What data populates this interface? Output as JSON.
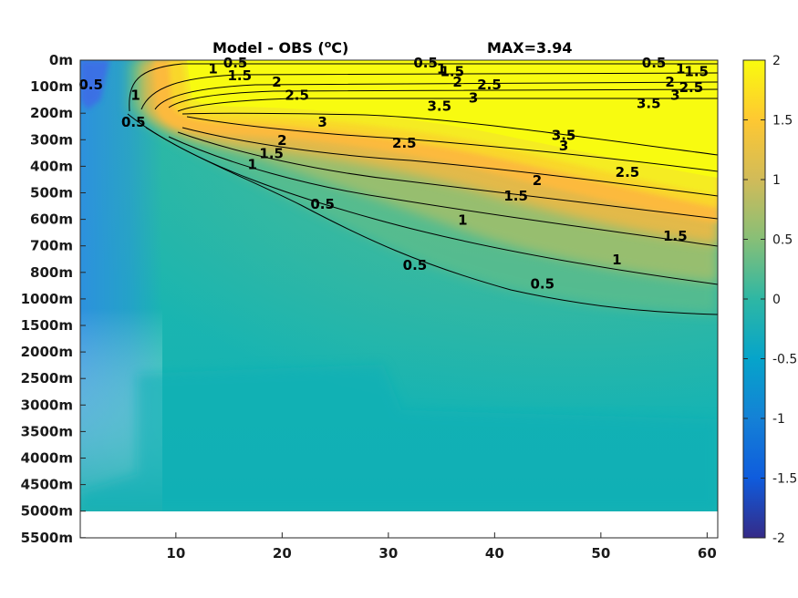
{
  "chart_data": {
    "type": "heatmap",
    "title": "Model - OBS (°C)",
    "title_text": "Model - OBS (",
    "title_sup": "o",
    "title_unit": "C)",
    "max_label": "MAX=3.94",
    "xlim": [
      1,
      61
    ],
    "x_ticks": [
      10,
      20,
      30,
      40,
      50,
      60
    ],
    "y_tick_labels": [
      "0m",
      "100m",
      "200m",
      "300m",
      "400m",
      "500m",
      "600m",
      "700m",
      "800m",
      "1000m",
      "1500m",
      "2000m",
      "2500m",
      "3000m",
      "3500m",
      "4000m",
      "4500m",
      "5000m",
      "5500m"
    ],
    "data_bottom_label": "5000m",
    "colorbar": {
      "min": -2,
      "max": 2,
      "tick_labels": [
        "2",
        "1.5",
        "1",
        "0.5",
        "0",
        "-0.5",
        "-1",
        "-1.5",
        "-2"
      ],
      "colormap": "parula"
    },
    "contour_levels": [
      0.5,
      1,
      1.5,
      2,
      2.5,
      3,
      3.5
    ],
    "contour_labels": [
      {
        "text": "0.5",
        "x": 15.6,
        "depth": "0m"
      },
      {
        "text": "1",
        "x": 13.5,
        "depth": "50m"
      },
      {
        "text": "1.5",
        "x": 16.0,
        "depth": "75m"
      },
      {
        "text": "2",
        "x": 19.5,
        "depth": "100m"
      },
      {
        "text": "2.5",
        "x": 21.4,
        "depth": "150m"
      },
      {
        "text": "3",
        "x": 23.8,
        "depth": "250m"
      },
      {
        "text": "3.5",
        "x": 34.8,
        "depth": "190m"
      },
      {
        "text": "2.5",
        "x": 31.5,
        "depth": "330m"
      },
      {
        "text": "2",
        "x": 20.0,
        "depth": "320m"
      },
      {
        "text": "1.5",
        "x": 19.0,
        "depth": "370m"
      },
      {
        "text": "1",
        "x": 17.2,
        "depth": "410m"
      },
      {
        "text": "0.5",
        "x": 6.0,
        "depth": "250m"
      },
      {
        "text": "1",
        "x": 6.2,
        "depth": "150m"
      },
      {
        "text": "0.5",
        "x": 2.0,
        "depth": "110m"
      },
      {
        "text": "0.5",
        "x": 23.8,
        "depth": "560m"
      },
      {
        "text": "0.5",
        "x": 32.5,
        "depth": "790m"
      },
      {
        "text": "1",
        "x": 37.0,
        "depth": "620m"
      },
      {
        "text": "1.5",
        "x": 42.0,
        "depth": "530m"
      },
      {
        "text": "2",
        "x": 44.0,
        "depth": "470m"
      },
      {
        "text": "3",
        "x": 46.5,
        "depth": "340m"
      },
      {
        "text": "3.5",
        "x": 46.5,
        "depth": "300m"
      },
      {
        "text": "2.5",
        "x": 52.5,
        "depth": "440m"
      },
      {
        "text": "1.5",
        "x": 57.0,
        "depth": "680m"
      },
      {
        "text": "1",
        "x": 51.5,
        "depth": "770m"
      },
      {
        "text": "0.5",
        "x": 44.5,
        "depth": "920m"
      },
      {
        "text": "0.5",
        "x": 33.5,
        "depth": "0m"
      },
      {
        "text": "1",
        "x": 35.0,
        "depth": "50m"
      },
      {
        "text": "1.5",
        "x": 36.0,
        "depth": "60m"
      },
      {
        "text": "2",
        "x": 36.5,
        "depth": "100m"
      },
      {
        "text": "2.5",
        "x": 39.5,
        "depth": "110m"
      },
      {
        "text": "3",
        "x": 38.0,
        "depth": "160m"
      },
      {
        "text": "3.5",
        "x": 54.5,
        "depth": "180m"
      },
      {
        "text": "0.5",
        "x": 55.0,
        "depth": "0m"
      },
      {
        "text": "1",
        "x": 57.5,
        "depth": "50m"
      },
      {
        "text": "1.5",
        "x": 59.0,
        "depth": "60m"
      },
      {
        "text": "2",
        "x": 56.5,
        "depth": "100m"
      },
      {
        "text": "2.5",
        "x": 58.5,
        "depth": "120m"
      },
      {
        "text": "3",
        "x": 57.0,
        "depth": "150m"
      }
    ]
  }
}
